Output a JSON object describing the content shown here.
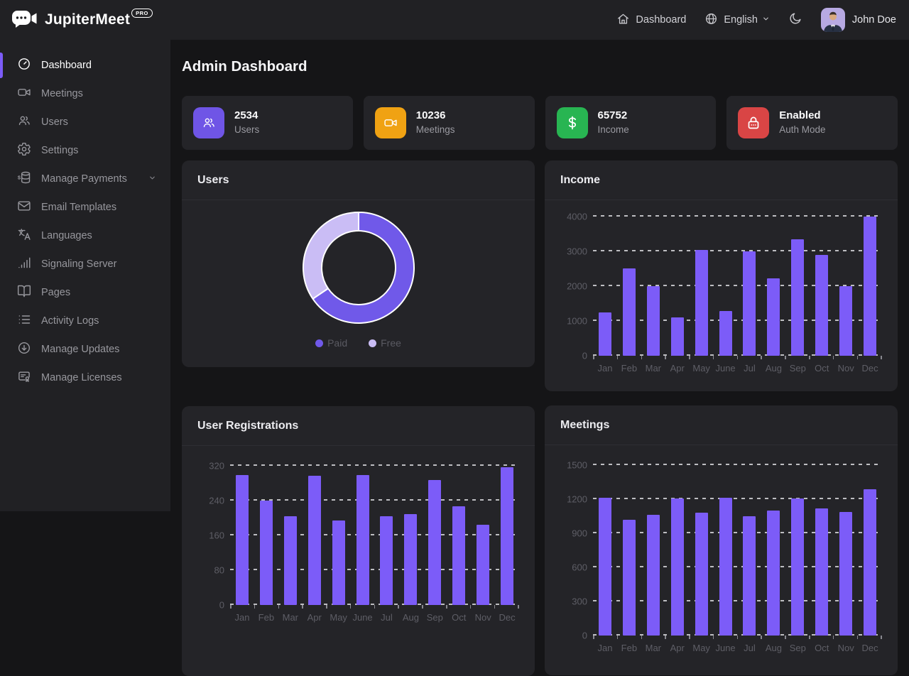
{
  "brand": {
    "name": "JupiterMeet",
    "badge": "PRO"
  },
  "header": {
    "nav_dashboard": "Dashboard",
    "language": "English",
    "user_name": "John Doe"
  },
  "page_title": "Admin Dashboard",
  "sidebar": {
    "items": [
      {
        "label": "Dashboard",
        "icon": "gauge-icon",
        "active": true
      },
      {
        "label": "Meetings",
        "icon": "video-icon"
      },
      {
        "label": "Users",
        "icon": "users-icon"
      },
      {
        "label": "Settings",
        "icon": "gear-icon"
      },
      {
        "label": "Manage Payments",
        "icon": "payments-icon",
        "chevron": true
      },
      {
        "label": "Email Templates",
        "icon": "mail-icon"
      },
      {
        "label": "Languages",
        "icon": "translate-icon"
      },
      {
        "label": "Signaling Server",
        "icon": "signal-icon"
      },
      {
        "label": "Pages",
        "icon": "book-icon"
      },
      {
        "label": "Activity Logs",
        "icon": "list-icon"
      },
      {
        "label": "Manage Updates",
        "icon": "update-icon"
      },
      {
        "label": "Manage Licenses",
        "icon": "license-icon"
      }
    ]
  },
  "stats": [
    {
      "value": "2534",
      "label": "Users",
      "icon": "users-icon",
      "color": "#6f55e6"
    },
    {
      "value": "10236",
      "label": "Meetings",
      "icon": "video-icon",
      "color": "#f0a213"
    },
    {
      "value": "65752",
      "label": "Income",
      "icon": "dollar-icon",
      "color": "#28b552"
    },
    {
      "value": "Enabled",
      "label": "Auth Mode",
      "icon": "lock-icon",
      "color": "#d94545"
    }
  ],
  "chart_data": [
    {
      "id": "users-donut",
      "type": "pie",
      "title": "Users",
      "slices": [
        {
          "label": "Paid",
          "value": 65.5,
          "color": "#7059e9"
        },
        {
          "label": "Free",
          "value": 34.5,
          "color": "#cabdf5"
        }
      ],
      "legend_position": "bottom"
    },
    {
      "id": "income",
      "type": "bar",
      "title": "Income",
      "categories": [
        "Jan",
        "Feb",
        "Mar",
        "Apr",
        "May",
        "June",
        "Jul",
        "Aug",
        "Sep",
        "Oct",
        "Nov",
        "Dec"
      ],
      "values": [
        1240,
        2500,
        2000,
        1110,
        3030,
        1280,
        3000,
        2230,
        3340,
        2890,
        2000,
        4000
      ],
      "ylim": [
        0,
        4400
      ],
      "yticks": [
        0,
        1000,
        2000,
        3000,
        4000
      ],
      "bar_color": "#7c5cf8",
      "grid": "dashed-horizontal"
    },
    {
      "id": "user-registrations",
      "type": "bar",
      "title": "User Registrations",
      "categories": [
        "Jan",
        "Feb",
        "Mar",
        "Apr",
        "May",
        "June",
        "Jul",
        "Aug",
        "Sep",
        "Oct",
        "Nov",
        "Dec"
      ],
      "values": [
        300,
        240,
        205,
        298,
        195,
        300,
        205,
        210,
        288,
        227,
        185,
        317
      ],
      "ylim": [
        0,
        360
      ],
      "yticks": [
        0,
        80,
        160,
        240,
        320
      ],
      "bar_color": "#7c5cf8",
      "grid": "dashed-horizontal"
    },
    {
      "id": "meetings",
      "type": "bar",
      "title": "Meetings",
      "categories": [
        "Jan",
        "Feb",
        "Mar",
        "Apr",
        "May",
        "June",
        "Jul",
        "Aug",
        "Sep",
        "Oct",
        "Nov",
        "Dec"
      ],
      "values": [
        1210,
        1020,
        1060,
        1205,
        1080,
        1210,
        1050,
        1100,
        1205,
        1120,
        1090,
        1290
      ],
      "ylim": [
        0,
        1650
      ],
      "yticks": [
        0,
        300,
        600,
        900,
        1200,
        1500
      ],
      "bar_color": "#7c5cf8",
      "grid": "dashed-horizontal"
    }
  ]
}
